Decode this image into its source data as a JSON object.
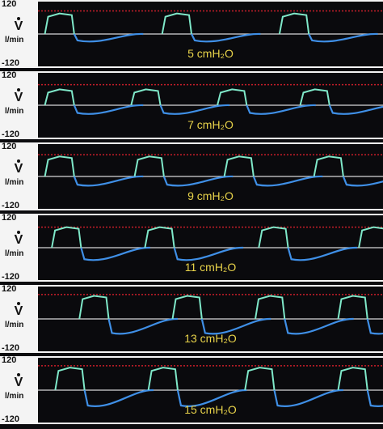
{
  "axis": {
    "ymax_label": "120",
    "ymin_label": "-120",
    "flow_symbol": "V",
    "unit": "l/min"
  },
  "colors": {
    "inspiratory": "#7fe8c9",
    "expiratory": "#3f8fe6",
    "limit_line": "#c81e2a",
    "baseline": "#d8d8d8",
    "label": "#e8d34a"
  },
  "chart_data": [
    {
      "type": "line",
      "title": "5 cmH2O",
      "pressure_label": "5 cmH₂O",
      "ylim": [
        -120,
        120
      ],
      "limit": 90,
      "peak_flow": 80,
      "trough_flow": -25,
      "breath_starts": [
        0.02,
        0.36,
        0.7
      ]
    },
    {
      "type": "line",
      "title": "7 cmH2O",
      "pressure_label": "7 cmH₂O",
      "ylim": [
        -120,
        120
      ],
      "limit": 80,
      "peak_flow": 62,
      "trough_flow": -30,
      "breath_starts": [
        0.02,
        0.27,
        0.52,
        0.76
      ]
    },
    {
      "type": "line",
      "title": "9 cmH2O",
      "pressure_label": "9 cmH₂O",
      "ylim": [
        -120,
        120
      ],
      "limit": 85,
      "peak_flow": 78,
      "trough_flow": -32,
      "breath_starts": [
        0.02,
        0.28,
        0.54,
        0.8
      ]
    },
    {
      "type": "line",
      "title": "11 cmH2O",
      "pressure_label": "11 cmH₂O",
      "ylim": [
        -120,
        120
      ],
      "limit": 80,
      "peak_flow": 80,
      "trough_flow": -45,
      "breath_starts": [
        0.04,
        0.31,
        0.64,
        0.93
      ]
    },
    {
      "type": "line",
      "title": "13 cmH2O",
      "pressure_label": "13 cmH₂O",
      "ylim": [
        -120,
        120
      ],
      "limit": 95,
      "peak_flow": 90,
      "trough_flow": -55,
      "breath_starts": [
        0.12,
        0.39,
        0.63,
        0.87
      ]
    },
    {
      "type": "line",
      "title": "15 cmH2O",
      "pressure_label": "15 cmH₂O",
      "ylim": [
        -120,
        120
      ],
      "limit": 95,
      "peak_flow": 88,
      "trough_flow": -60,
      "breath_starts": [
        0.05,
        0.32,
        0.6,
        0.87
      ]
    }
  ]
}
